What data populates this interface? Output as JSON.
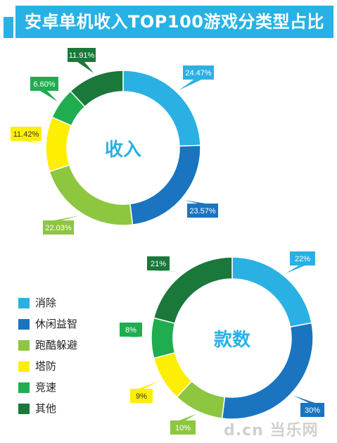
{
  "title": "安卓单机收入TOP100游戏分类型占比",
  "colors": {
    "title_bg": "#27b1e4",
    "消除": "#2bb0e3",
    "休闲益智": "#1a74bf",
    "跑酷躲避": "#8dc63f",
    "塔防": "#fdee02",
    "竞速": "#1fad4f",
    "其他": "#19783a"
  },
  "legend": [
    {
      "label": "消除",
      "color": "#2bb0e3"
    },
    {
      "label": "休闲益智",
      "color": "#1a74bf"
    },
    {
      "label": "跑酷躲避",
      "color": "#8dc63f"
    },
    {
      "label": "塔防",
      "color": "#fdee02"
    },
    {
      "label": "竞速",
      "color": "#1fad4f"
    },
    {
      "label": "其他",
      "color": "#19783a"
    }
  ],
  "chart_data": [
    {
      "type": "pie",
      "title": "收入",
      "categories": [
        "消除",
        "休闲益智",
        "跑酷躲避",
        "塔防",
        "竞速",
        "其他"
      ],
      "values": [
        24.47,
        23.57,
        22.03,
        11.42,
        6.6,
        11.91
      ],
      "labels": [
        "24.47%",
        "23.57%",
        "22.03%",
        "11.42%",
        "6.60%",
        "11.91%"
      ]
    },
    {
      "type": "pie",
      "title": "款数",
      "categories": [
        "消除",
        "休闲益智",
        "跑酷躲避",
        "塔防",
        "竞速",
        "其他"
      ],
      "values": [
        22,
        30,
        10,
        9,
        8,
        21
      ],
      "labels": [
        "22%",
        "30%",
        "10%",
        "9%",
        "8%",
        "21%"
      ]
    }
  ],
  "watermark": "d.cn 当乐网"
}
